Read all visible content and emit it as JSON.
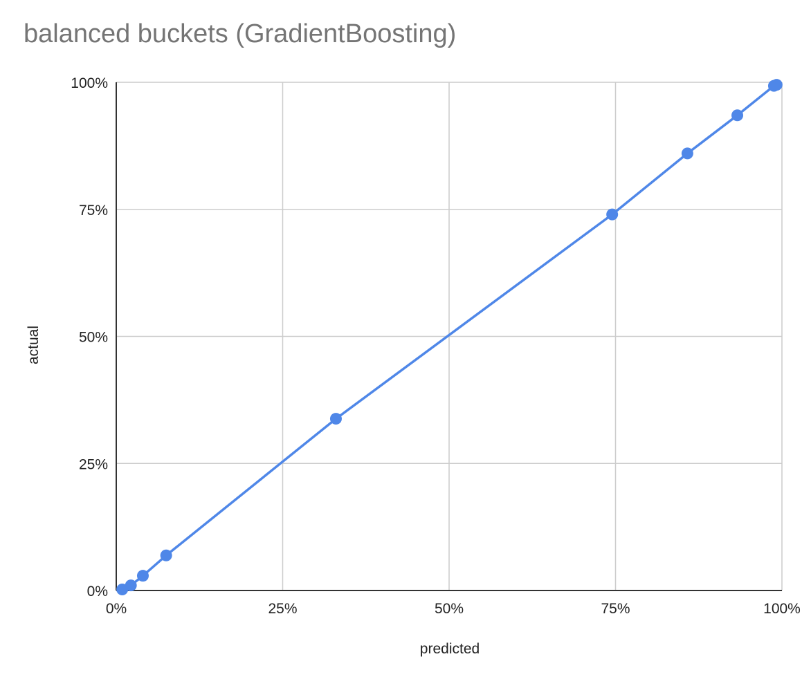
{
  "chart_data": {
    "type": "line",
    "title": "balanced buckets (GradientBoosting)",
    "xlabel": "predicted",
    "ylabel": "actual",
    "xlim": [
      0,
      100
    ],
    "ylim": [
      0,
      100
    ],
    "x_ticks": [
      "0%",
      "25%",
      "50%",
      "75%",
      "100%"
    ],
    "y_ticks": [
      "0%",
      "25%",
      "50%",
      "75%",
      "100%"
    ],
    "grid": true,
    "legend": "none",
    "series": [
      {
        "color": "#4f87e8",
        "x": [
          0.9,
          2.2,
          4.0,
          7.5,
          33.0,
          74.5,
          85.8,
          93.3,
          98.8,
          99.2
        ],
        "y": [
          0.2,
          1.0,
          2.9,
          6.9,
          33.8,
          74.0,
          86.0,
          93.5,
          99.3,
          99.5
        ]
      }
    ]
  }
}
